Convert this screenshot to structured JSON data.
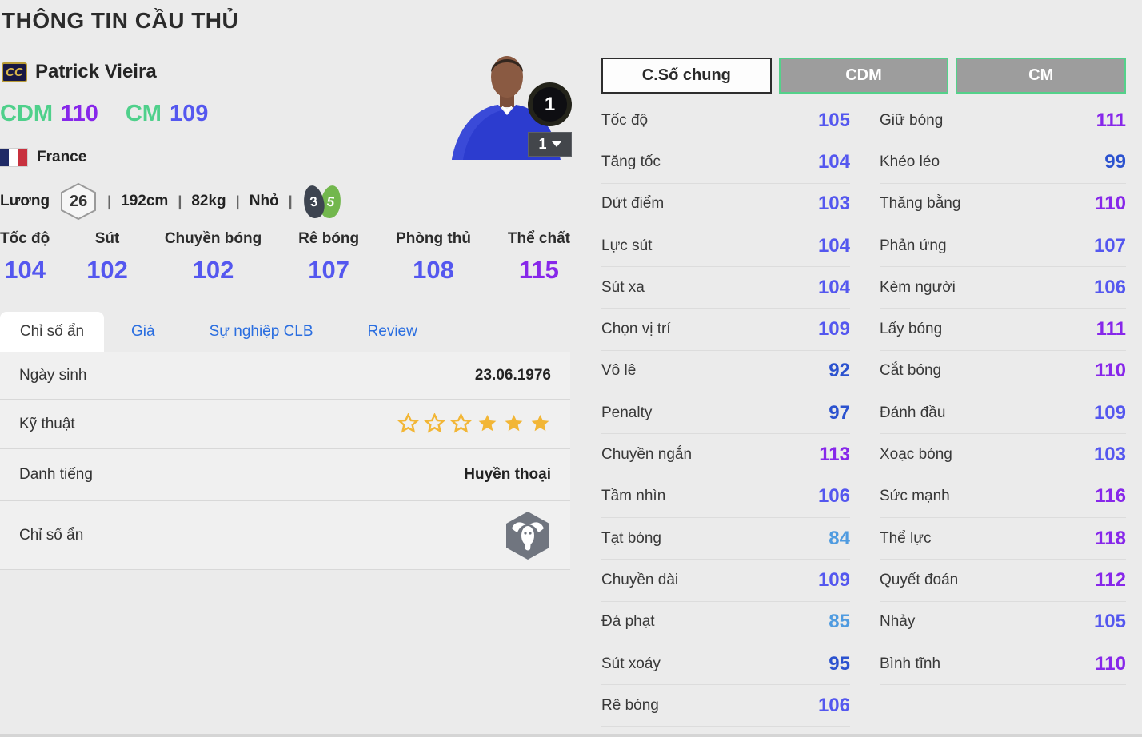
{
  "page": {
    "title": "THÔNG TIN CẦU THỦ"
  },
  "player": {
    "badge": "CC",
    "name": "Patrick Vieira",
    "positions": [
      {
        "pos": "CDM",
        "rating": "110"
      },
      {
        "pos": "CM",
        "rating": "109"
      }
    ],
    "nation": "France",
    "salary_label": "Lương",
    "salary": "26",
    "separator": "|",
    "height": "192cm",
    "weight": "82kg",
    "body_type": "Nhỏ",
    "weak_foot_left": "3",
    "weak_foot_right": "5",
    "grade_badge": "1",
    "level_value": "1"
  },
  "main_stats": [
    {
      "label": "Tốc độ",
      "value": 104
    },
    {
      "label": "Sút",
      "value": 102
    },
    {
      "label": "Chuyền bóng",
      "value": 102
    },
    {
      "label": "Rê bóng",
      "value": 107
    },
    {
      "label": "Phòng thủ",
      "value": 108
    },
    {
      "label": "Thể chất",
      "value": 115
    }
  ],
  "tabs": [
    {
      "label": "Chỉ số ẩn",
      "active": true
    },
    {
      "label": "Giá",
      "active": false
    },
    {
      "label": "Sự nghiệp CLB",
      "active": false
    },
    {
      "label": "Review",
      "active": false
    }
  ],
  "details": {
    "birthdate_label": "Ngày sinh",
    "birthdate_value": "23.06.1976",
    "skill_label": "Kỹ thuật",
    "skill_stars_total": 6,
    "skill_stars_filled": 3,
    "fame_label": "Danh tiếng",
    "fame_value": "Huyền thoại",
    "hidden_label": "Chỉ số ẩn",
    "hidden_icon": "buffalo-hexagon-icon"
  },
  "stat_tabs": [
    {
      "label": "C.Số chung",
      "active": true
    },
    {
      "label": "CDM",
      "active": false
    },
    {
      "label": "CM",
      "active": false
    }
  ],
  "detailed_stats": {
    "left": [
      {
        "label": "Tốc độ",
        "value": 105
      },
      {
        "label": "Tăng tốc",
        "value": 104
      },
      {
        "label": "Dứt điểm",
        "value": 103
      },
      {
        "label": "Lực sút",
        "value": 104
      },
      {
        "label": "Sút xa",
        "value": 104
      },
      {
        "label": "Chọn vị trí",
        "value": 109
      },
      {
        "label": "Vô lê",
        "value": 92
      },
      {
        "label": "Penalty",
        "value": 97
      },
      {
        "label": "Chuyền ngắn",
        "value": 113
      },
      {
        "label": "Tầm nhìn",
        "value": 106
      },
      {
        "label": "Tạt bóng",
        "value": 84
      },
      {
        "label": "Chuyền dài",
        "value": 109
      },
      {
        "label": "Đá phạt",
        "value": 85
      },
      {
        "label": "Sút xoáy",
        "value": 95
      },
      {
        "label": "Rê bóng",
        "value": 106
      }
    ],
    "right": [
      {
        "label": "Giữ bóng",
        "value": 111
      },
      {
        "label": "Khéo léo",
        "value": 99
      },
      {
        "label": "Thăng bằng",
        "value": 110
      },
      {
        "label": "Phản ứng",
        "value": 107
      },
      {
        "label": "Kèm người",
        "value": 106
      },
      {
        "label": "Lấy bóng",
        "value": 111
      },
      {
        "label": "Cắt bóng",
        "value": 110
      },
      {
        "label": "Đánh đầu",
        "value": 109
      },
      {
        "label": "Xoạc bóng",
        "value": 103
      },
      {
        "label": "Sức mạnh",
        "value": 116
      },
      {
        "label": "Thể lực",
        "value": 118
      },
      {
        "label": "Quyết đoán",
        "value": 112
      },
      {
        "label": "Nhảy",
        "value": 105
      },
      {
        "label": "Bình tĩnh",
        "value": 110
      }
    ]
  },
  "colors": {
    "tier_110_plus": "#8727ea",
    "tier_100_109": "#5457ef",
    "tier_90_99": "#2b52cf",
    "tier_80_89": "#4f9be0",
    "position_green": "#4fd08b",
    "tab_link_blue": "#2a6ee0",
    "star_gold": "#f2b636",
    "flag_blue": "#1f2a66",
    "flag_red": "#c8313e"
  }
}
